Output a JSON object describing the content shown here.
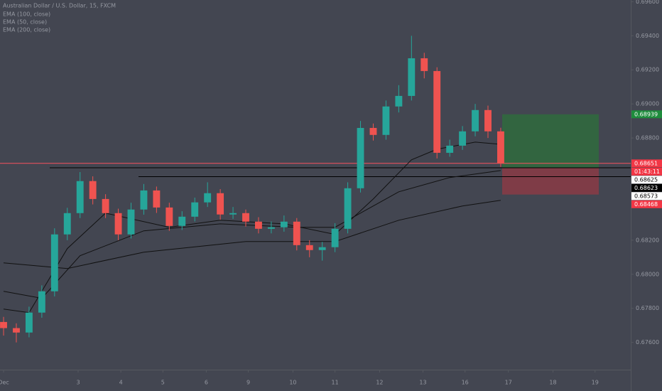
{
  "chart_data": {
    "type": "candlestick",
    "title": "Australian Dollar / U.S. Dollar, 15, FXCM",
    "up_color": "#26a69a",
    "down_color": "#ef5350",
    "open": [
      0.6772,
      0.67684,
      0.67658,
      0.67775,
      0.679,
      0.68234,
      0.68359,
      0.68547,
      0.68442,
      0.68359,
      0.68234,
      0.6838,
      0.68492,
      0.68392,
      0.68284,
      0.68338,
      0.68422,
      0.68476,
      0.68351,
      0.68359,
      0.68309,
      0.68267,
      0.68276,
      0.68309,
      0.68171,
      0.68142,
      0.68159,
      0.68267,
      0.68505,
      0.68859,
      0.68818,
      0.68985,
      0.69047,
      0.69268,
      0.69193,
      0.68713,
      0.68755,
      0.68839,
      0.68964,
      0.68839
    ],
    "high": [
      0.6775,
      0.67712,
      0.6781,
      0.67935,
      0.6827,
      0.6839,
      0.686,
      0.68575,
      0.6847,
      0.68385,
      0.6842,
      0.6853,
      0.68515,
      0.6842,
      0.6837,
      0.6845,
      0.6854,
      0.685,
      0.68395,
      0.6838,
      0.68335,
      0.6831,
      0.68345,
      0.6833,
      0.682,
      0.6819,
      0.683,
      0.6854,
      0.689,
      0.68885,
      0.6902,
      0.6911,
      0.694,
      0.693,
      0.69215,
      0.6879,
      0.6887,
      0.69,
      0.6899,
      0.6886
    ],
    "low": [
      0.6764,
      0.676,
      0.6763,
      0.67745,
      0.6787,
      0.682,
      0.6833,
      0.6841,
      0.6833,
      0.682,
      0.6821,
      0.6835,
      0.6836,
      0.68255,
      0.6826,
      0.6831,
      0.68395,
      0.6832,
      0.68325,
      0.6828,
      0.6824,
      0.6824,
      0.6825,
      0.6814,
      0.681,
      0.6808,
      0.6813,
      0.6824,
      0.6848,
      0.68785,
      0.6879,
      0.6895,
      0.6902,
      0.6915,
      0.6868,
      0.6869,
      0.6873,
      0.6881,
      0.688,
      0.6863
    ],
    "close": [
      0.67684,
      0.67658,
      0.67775,
      0.679,
      0.68234,
      0.68359,
      0.68547,
      0.68442,
      0.68359,
      0.68234,
      0.6838,
      0.68492,
      0.68392,
      0.68284,
      0.68338,
      0.68422,
      0.68476,
      0.68351,
      0.68359,
      0.68309,
      0.68267,
      0.68276,
      0.68309,
      0.68171,
      0.68142,
      0.68159,
      0.68267,
      0.68505,
      0.68859,
      0.68818,
      0.68985,
      0.69047,
      0.69268,
      0.69193,
      0.68713,
      0.68755,
      0.68839,
      0.68964,
      0.68839,
      0.68651
    ],
    "series": [
      {
        "name": "EMA (100, close)",
        "color": "#111111",
        "x": [
          0,
          3,
          6,
          11,
          17,
          23,
          26,
          31,
          35,
          39
        ],
        "values": [
          0.679,
          0.67859,
          0.68109,
          0.68255,
          0.68296,
          0.68276,
          0.68276,
          0.68484,
          0.68568,
          0.68609
        ]
      },
      {
        "name": "EMA (50, close)",
        "color": "#111111",
        "x": [
          0,
          2,
          5,
          8,
          13,
          17,
          22,
          26,
          29,
          32,
          34,
          37,
          39
        ],
        "values": [
          0.67796,
          0.67775,
          0.68151,
          0.68359,
          0.68276,
          0.68317,
          0.68296,
          0.68234,
          0.68442,
          0.68672,
          0.68734,
          0.68776,
          0.68763
        ]
      },
      {
        "name": "EMA (200, close)",
        "color": "#111111",
        "x": [
          0,
          5,
          11,
          19,
          26,
          31,
          36,
          39
        ],
        "values": [
          0.68067,
          0.68034,
          0.6813,
          0.68192,
          0.68192,
          0.68317,
          0.68401,
          0.68434
        ]
      }
    ],
    "ylim": [
      0.6744,
      0.6961
    ],
    "yticks": [
      {
        "value": 0.676,
        "label": "0.67600"
      },
      {
        "value": 0.678,
        "label": "0.67800"
      },
      {
        "value": 0.68,
        "label": "0.68000"
      },
      {
        "value": 0.682,
        "label": "0.68200"
      },
      {
        "value": 0.684,
        "label": "0.68400"
      },
      {
        "value": 0.686,
        "label": "0.68600"
      },
      {
        "value": 0.688,
        "label": "0.68800"
      },
      {
        "value": 0.69,
        "label": "0.69000"
      },
      {
        "value": 0.692,
        "label": "0.69200"
      },
      {
        "value": 0.694,
        "label": "0.69400"
      },
      {
        "value": 0.696,
        "label": "0.69600"
      }
    ],
    "xlim": [
      -0.28,
      49.2
    ],
    "xticks": [
      {
        "value": 0,
        "label": "Dec"
      },
      {
        "value": 5.85,
        "label": "3"
      },
      {
        "value": 9.2,
        "label": "4"
      },
      {
        "value": 12.5,
        "label": "5"
      },
      {
        "value": 15.9,
        "label": "6"
      },
      {
        "value": 19.2,
        "label": "9"
      },
      {
        "value": 22.7,
        "label": "10"
      },
      {
        "value": 26,
        "label": "11"
      },
      {
        "value": 29.5,
        "label": "12"
      },
      {
        "value": 32.9,
        "label": "13"
      },
      {
        "value": 36.2,
        "label": "16"
      },
      {
        "value": 39.6,
        "label": "17"
      },
      {
        "value": 43.1,
        "label": "18"
      },
      {
        "value": 46.4,
        "label": "19"
      }
    ],
    "levels": [
      {
        "value": 0.68651,
        "color": "#f7525f"
      },
      {
        "value": 0.68625,
        "color": "#000000"
      },
      {
        "value": 0.68573,
        "color": "#000000"
      }
    ],
    "position": {
      "target": 0.68939,
      "entry": 0.68623,
      "stop": 0.68468
    },
    "countdown": "01:43:11",
    "price_labels": [
      {
        "value": 0.68939,
        "bg": "#1e8c3c",
        "fg": "#ffffff"
      },
      {
        "value": 0.68651,
        "bg": "#f23645",
        "fg": "#ffffff"
      },
      {
        "value": 0.68625,
        "bg": "#ffffff",
        "fg": "#000000"
      },
      {
        "value": 0.68623,
        "bg": "#000000",
        "fg": "#ffffff"
      },
      {
        "value": 0.68573,
        "bg": "#ffffff",
        "fg": "#000000"
      },
      {
        "value": 0.68468,
        "bg": "#f23645",
        "fg": "#ffffff"
      }
    ]
  }
}
